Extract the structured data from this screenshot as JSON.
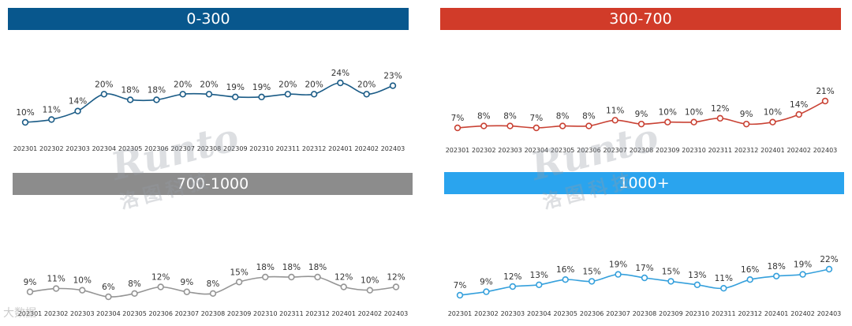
{
  "chart_data": [
    {
      "type": "line",
      "title": "0-300",
      "color": "#1a5b86",
      "title_bg": "#08578d",
      "categories": [
        "202301",
        "202302",
        "202303",
        "202304",
        "202305",
        "202306",
        "202307",
        "202308",
        "202309",
        "202310",
        "202311",
        "202312",
        "202401",
        "202402",
        "202403"
      ],
      "values": [
        10,
        11,
        14,
        20,
        18,
        18,
        20,
        20,
        19,
        19,
        20,
        20,
        24,
        20,
        23
      ],
      "labels": [
        "10%",
        "11%",
        "14%",
        "20%",
        "18%",
        "18%",
        "20%",
        "20%",
        "19%",
        "19%",
        "20%",
        "20%",
        "24%",
        "20%",
        "23%"
      ],
      "ylim": [
        10,
        24
      ]
    },
    {
      "type": "line",
      "title": "300-700",
      "color": "#c94234",
      "title_bg": "#d13b29",
      "categories": [
        "202301",
        "202302",
        "202303",
        "202304",
        "202305",
        "202306",
        "202307",
        "202308",
        "202309",
        "202310",
        "202311",
        "202312",
        "202401",
        "202402",
        "202403"
      ],
      "values": [
        7,
        8,
        8,
        7,
        8,
        8,
        11,
        9,
        10,
        10,
        12,
        9,
        10,
        14,
        21
      ],
      "labels": [
        "7%",
        "8%",
        "8%",
        "7%",
        "8%",
        "8%",
        "11%",
        "9%",
        "10%",
        "10%",
        "12%",
        "9%",
        "10%",
        "14%",
        "21%"
      ],
      "ylim": [
        7,
        21
      ]
    },
    {
      "type": "line",
      "title": "700-1000",
      "color": "#959595",
      "title_bg": "#8c8c8c",
      "categories": [
        "202301",
        "202302",
        "202303",
        "202304",
        "202305",
        "202306",
        "202307",
        "202308",
        "202309",
        "202310",
        "202311",
        "202312",
        "202401",
        "202402",
        "202403"
      ],
      "values": [
        9,
        11,
        10,
        6,
        8,
        12,
        9,
        8,
        15,
        18,
        18,
        18,
        12,
        10,
        12
      ],
      "labels": [
        "9%",
        "11%",
        "10%",
        "6%",
        "8%",
        "12%",
        "9%",
        "8%",
        "15%",
        "18%",
        "18%",
        "18%",
        "12%",
        "10%",
        "12%"
      ],
      "ylim": [
        6,
        18
      ]
    },
    {
      "type": "line",
      "title": "1000+",
      "color": "#35a0dc",
      "title_bg": "#2aa4ee",
      "categories": [
        "202301",
        "202302",
        "202303",
        "202304",
        "202305",
        "202306",
        "202307",
        "202308",
        "202309",
        "202310",
        "202311",
        "202312",
        "202401",
        "202402",
        "202403"
      ],
      "values": [
        7,
        9,
        12,
        13,
        16,
        15,
        19,
        17,
        15,
        13,
        11,
        16,
        18,
        19,
        22
      ],
      "labels": [
        "7%",
        "9%",
        "12%",
        "13%",
        "16%",
        "15%",
        "19%",
        "17%",
        "15%",
        "13%",
        "11%",
        "16%",
        "18%",
        "19%",
        "22%"
      ],
      "ylim": [
        7,
        22
      ]
    }
  ],
  "watermark": {
    "brand": "Runto",
    "brand_cn": "洛图科技"
  },
  "source_watermark": "大数据"
}
